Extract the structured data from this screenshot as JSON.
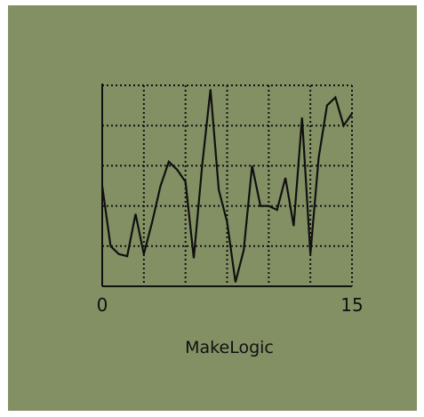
{
  "app": {
    "caption": "MakeLogic"
  },
  "colors": {
    "screen_bg": "#839064",
    "ink": "#101010"
  },
  "chart_data": {
    "type": "line",
    "title": "",
    "xlabel": "",
    "ylabel": "",
    "xlim": [
      0,
      15
    ],
    "ylim": [
      0,
      5
    ],
    "grid": true,
    "x_tick_labels": [
      {
        "value": 0,
        "label": "0"
      },
      {
        "value": 15,
        "label": "15"
      }
    ],
    "series": [
      {
        "x": [
          0,
          0.5,
          1,
          1.5,
          2,
          2.5,
          3,
          3.5,
          4,
          4.5,
          5,
          5.5,
          6,
          6.5,
          7,
          7.5,
          8,
          8.5,
          9,
          9.5,
          10,
          10.5,
          11,
          11.5,
          12,
          12.5,
          13,
          13.5,
          14,
          14.5,
          15
        ],
        "values": [
          2.5,
          1.0,
          0.8,
          0.75,
          1.8,
          0.8,
          1.6,
          2.5,
          3.1,
          2.9,
          2.6,
          0.7,
          3.0,
          4.9,
          2.4,
          1.6,
          0.1,
          0.9,
          3.0,
          2.0,
          2.0,
          1.9,
          2.7,
          1.5,
          4.2,
          0.8,
          3.2,
          4.5,
          4.7,
          4.0,
          4.3
        ]
      }
    ]
  }
}
